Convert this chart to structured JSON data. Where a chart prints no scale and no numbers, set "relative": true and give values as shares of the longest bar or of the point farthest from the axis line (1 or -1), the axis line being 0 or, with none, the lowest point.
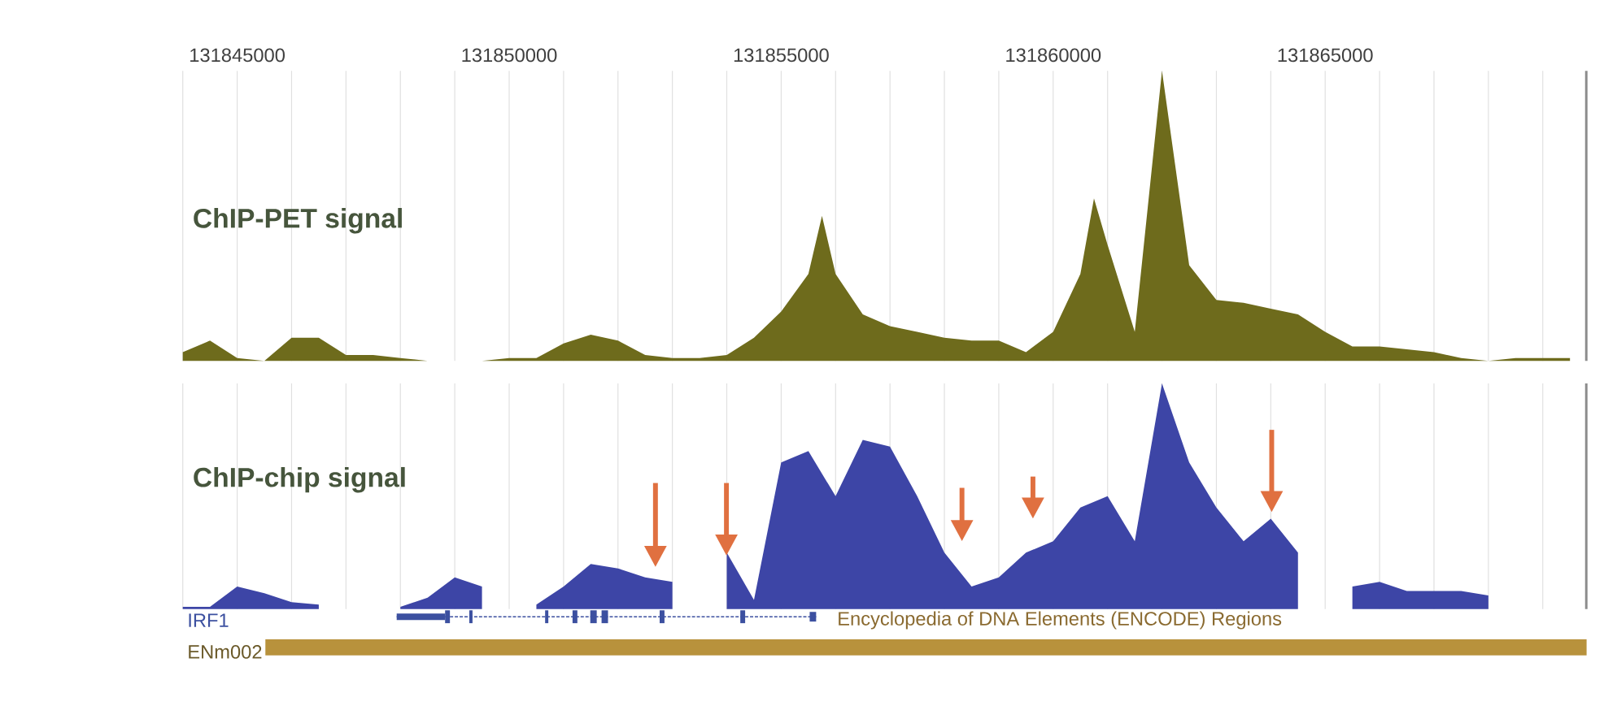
{
  "chart_data": [
    {
      "type": "area",
      "title": "ChIP-PET signal",
      "relative": true,
      "grid": "x",
      "tick_labels": "x",
      "color": "#6e6b1c",
      "xlim": [
        131844000,
        131869800
      ],
      "xticks": [
        {
          "value": 131844000,
          "label": null
        },
        131845000,
        {
          "value": 131846000,
          "label": null
        },
        {
          "value": 131847000,
          "label": null
        },
        {
          "value": 131848000,
          "label": null
        },
        {
          "value": 131849000,
          "label": null
        },
        131850000,
        {
          "value": 131851000,
          "label": null
        },
        {
          "value": 131852000,
          "label": null
        },
        {
          "value": 131853000,
          "label": null
        },
        {
          "value": 131854000,
          "label": null
        },
        131855000,
        {
          "value": 131856000,
          "label": null
        },
        {
          "value": 131857000,
          "label": null
        },
        {
          "value": 131858000,
          "label": null
        },
        {
          "value": 131859000,
          "label": null
        },
        131860000,
        {
          "value": 131861000,
          "label": null
        },
        {
          "value": 131862000,
          "label": null
        },
        {
          "value": 131863000,
          "label": null
        },
        {
          "value": 131864000,
          "label": null
        },
        131865000,
        {
          "value": 131866000,
          "label": null
        },
        {
          "value": 131867000,
          "label": null
        },
        {
          "value": 131868000,
          "label": null
        },
        {
          "value": 131869000,
          "label": null
        }
      ],
      "x": [
        131844000,
        131844500,
        131845000,
        131845500,
        131846000,
        131846500,
        131847000,
        131847500,
        131848000,
        131848500,
        131849000,
        131849500,
        131850000,
        131850500,
        131851000,
        131851500,
        131852000,
        131852500,
        131853000,
        131853500,
        131854000,
        131854500,
        131855000,
        131855500,
        131855750,
        131856000,
        131856500,
        131857000,
        131857500,
        131858000,
        131858500,
        131859000,
        131859500,
        131860000,
        131860500,
        131860750,
        131861000,
        131861500,
        131862000,
        131862500,
        131863000,
        131863500,
        131864000,
        131864500,
        131865000,
        131865500,
        131866000,
        131866500,
        131867000,
        131867500,
        131868000,
        131868500,
        131869000,
        131869500
      ],
      "values": [
        0.03,
        0.07,
        0.01,
        0,
        0.08,
        0.08,
        0.02,
        0.02,
        0.01,
        0,
        0,
        0,
        0.01,
        0.01,
        0.06,
        0.09,
        0.07,
        0.02,
        0.01,
        0.01,
        0.02,
        0.08,
        0.17,
        0.3,
        0.5,
        0.3,
        0.16,
        0.12,
        0.1,
        0.08,
        0.07,
        0.07,
        0.03,
        0.1,
        0.3,
        0.56,
        0.4,
        0.1,
        1.0,
        0.33,
        0.21,
        0.2,
        0.18,
        0.16,
        0.1,
        0.05,
        0.05,
        0.04,
        0.03,
        0.01,
        0,
        0.01,
        0.01,
        0.01
      ]
    },
    {
      "type": "area",
      "title": "ChIP-chip signal",
      "relative": true,
      "grid": "x",
      "tick_labels": false,
      "color": "#3d45a6",
      "xlim": [
        131844000,
        131869800
      ],
      "xticks": [
        {
          "value": 131844000,
          "label": null
        },
        131845000,
        {
          "value": 131846000,
          "label": null
        },
        {
          "value": 131847000,
          "label": null
        },
        {
          "value": 131848000,
          "label": null
        },
        {
          "value": 131849000,
          "label": null
        },
        131850000,
        {
          "value": 131851000,
          "label": null
        },
        {
          "value": 131852000,
          "label": null
        },
        {
          "value": 131853000,
          "label": null
        },
        {
          "value": 131854000,
          "label": null
        },
        131855000,
        {
          "value": 131856000,
          "label": null
        },
        {
          "value": 131857000,
          "label": null
        },
        {
          "value": 131858000,
          "label": null
        },
        {
          "value": 131859000,
          "label": null
        },
        131860000,
        {
          "value": 131861000,
          "label": null
        },
        {
          "value": 131862000,
          "label": null
        },
        {
          "value": 131863000,
          "label": null
        },
        {
          "value": 131864000,
          "label": null
        },
        131865000,
        {
          "value": 131866000,
          "label": null
        },
        {
          "value": 131867000,
          "label": null
        },
        {
          "value": 131868000,
          "label": null
        },
        {
          "value": 131869000,
          "label": null
        }
      ],
      "x": [
        131844000,
        131844500,
        131845000,
        131845500,
        131846000,
        131846500,
        131847000,
        131847500,
        131848000,
        131848500,
        131849000,
        131849500,
        131850000,
        131850500,
        131851000,
        131851500,
        131852000,
        131852500,
        131853000,
        131853500,
        131854000,
        131854500,
        131855000,
        131855500,
        131856000,
        131856500,
        131857000,
        131857500,
        131858000,
        131858500,
        131859000,
        131859500,
        131860000,
        131860500,
        131861000,
        131861500,
        131862000,
        131862500,
        131863000,
        131863500,
        131864000,
        131864500,
        131865000,
        131865500,
        131866000,
        131866500,
        131867000,
        131867500,
        131868000
      ],
      "values": [
        0.01,
        0.01,
        0.1,
        0.07,
        0.03,
        0.02,
        null,
        null,
        0.01,
        0.05,
        0.14,
        0.1,
        null,
        0.02,
        0.1,
        0.2,
        0.18,
        0.14,
        0.12,
        null,
        0.25,
        0.04,
        0.65,
        0.7,
        0.5,
        0.75,
        0.72,
        0.5,
        0.25,
        0.1,
        0.14,
        0.25,
        0.3,
        0.45,
        0.5,
        0.3,
        1.0,
        0.65,
        0.45,
        0.3,
        0.4,
        0.25,
        null,
        0.1,
        0.12,
        0.08,
        0.08,
        0.08,
        0.06
      ],
      "annotations": [
        "IRF1",
        "ENm002",
        "Encyclopedia of DNA Elements (ENCODE) Regions"
      ]
    }
  ]
}
